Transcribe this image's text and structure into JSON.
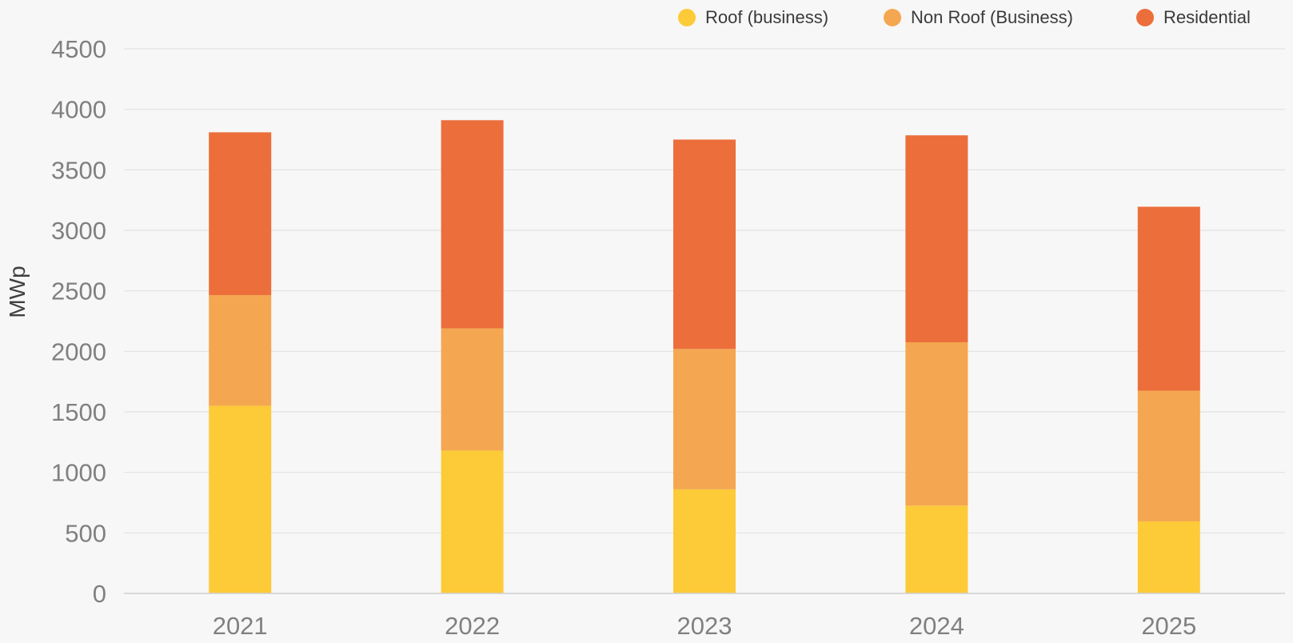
{
  "chart_data": {
    "type": "bar",
    "stacked": true,
    "title": "",
    "xlabel": "",
    "ylabel": "MWp",
    "ylim": [
      0,
      4500
    ],
    "yticks": [
      0,
      500,
      1000,
      1500,
      2000,
      2500,
      3000,
      3500,
      4000,
      4500
    ],
    "grid": true,
    "legend_position": "top-right",
    "categories": [
      "2021",
      "2022",
      "2023",
      "2024",
      "2025"
    ],
    "series": [
      {
        "name": "Roof (business)",
        "color": "#fdca38",
        "values": [
          1550,
          1180,
          860,
          725,
          595
        ]
      },
      {
        "name": "Non Roof (Business)",
        "color": "#f4a750",
        "values": [
          915,
          1010,
          1160,
          1350,
          1080
        ]
      },
      {
        "name": "Residential",
        "color": "#ec6e3b",
        "values": [
          1345,
          1720,
          1730,
          1710,
          1520
        ]
      }
    ]
  }
}
